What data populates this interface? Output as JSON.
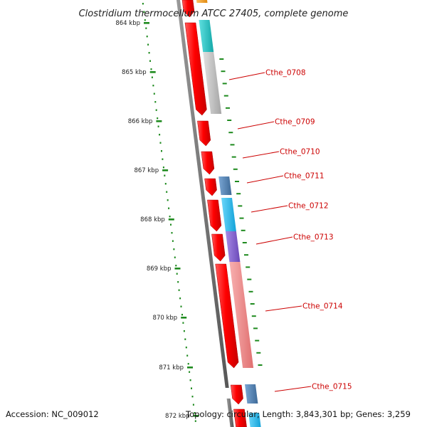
{
  "title": "Clostridium thermocellum ATCC 27405, complete genome",
  "footer": {
    "accession": "Accession: NC_009012",
    "topology": "Topology: circular; Length: 3,843,301 bp; Genes: 3,259"
  },
  "ruler": {
    "ticks": [
      "864 kbp",
      "865 kbp",
      "866 kbp",
      "867 kbp",
      "868 kbp",
      "869 kbp",
      "870 kbp",
      "871 kbp",
      "872 kbp"
    ]
  },
  "genes": [
    "Cthe_0708",
    "Cthe_0709",
    "Cthe_0710",
    "Cthe_0711",
    "Cthe_0712",
    "Cthe_0713",
    "Cthe_0714",
    "Cthe_0715"
  ],
  "colors": {
    "cds": "#ee0000",
    "backbone": "#808080",
    "ruler": "#1e8a1e",
    "label": "#cc0000",
    "cog_teal": "#20c8c8",
    "cog_gray": "#bdbdbd",
    "cog_steel": "#4f7fb0",
    "cog_sky": "#22bbee",
    "cog_purple": "#8060cc",
    "cog_pink": "#f08a8a",
    "cog_orange": "#f0a030"
  }
}
